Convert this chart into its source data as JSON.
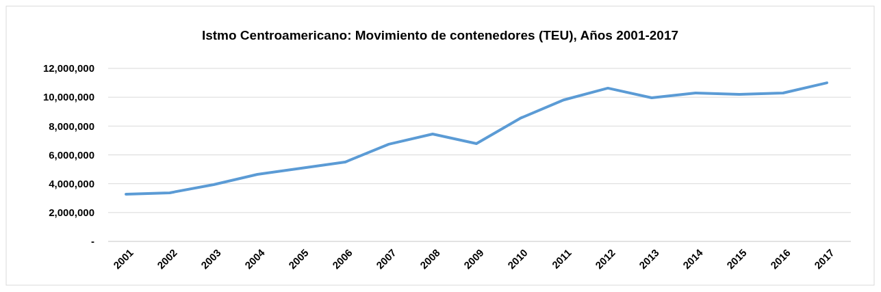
{
  "chart_data": {
    "type": "line",
    "title": "Istmo Centroamericano: Movimiento de contenedores (TEU), Años 2001-2017",
    "categories": [
      "2001",
      "2002",
      "2003",
      "2004",
      "2005",
      "2006",
      "2007",
      "2008",
      "2009",
      "2010",
      "2011",
      "2012",
      "2013",
      "2014",
      "2015",
      "2016",
      "2017"
    ],
    "series": [
      {
        "color": "#5b9bd5",
        "values": [
          3270000,
          3370000,
          3940000,
          4650000,
          5080000,
          5500000,
          6740000,
          7450000,
          6780000,
          8540000,
          9820000,
          10630000,
          9960000,
          10290000,
          10200000,
          10290000,
          11000000
        ]
      }
    ],
    "ylim": [
      0,
      12000000
    ],
    "yticks": [
      {
        "value": 0,
        "label": "-"
      },
      {
        "value": 2000000,
        "label": "2,000,000"
      },
      {
        "value": 4000000,
        "label": "4,000,000"
      },
      {
        "value": 6000000,
        "label": "6,000,000"
      },
      {
        "value": 8000000,
        "label": "8,000,000"
      },
      {
        "value": 10000000,
        "label": "10,000,000"
      },
      {
        "value": 12000000,
        "label": "12,000,000"
      }
    ],
    "grid": "y",
    "marker": "none",
    "line_style": "solid"
  }
}
